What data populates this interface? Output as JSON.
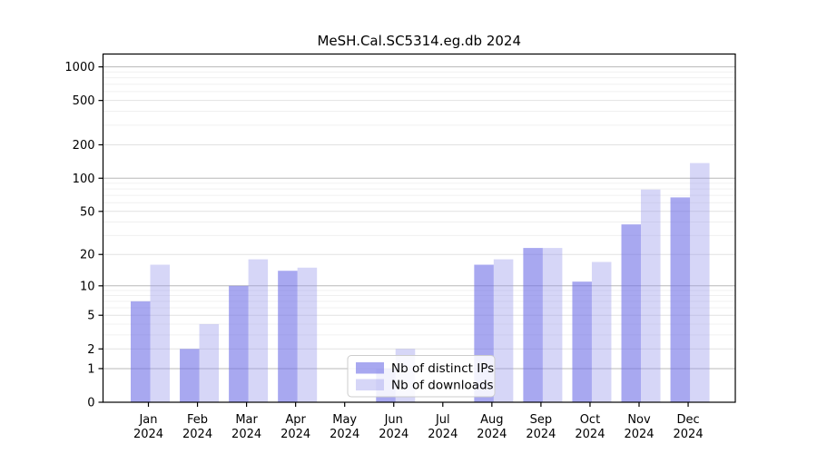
{
  "title": "MeSH.Cal.SC5314.eg.db 2024",
  "legend": {
    "items": [
      {
        "label": "Nb of distinct IPs",
        "swatch": "dark"
      },
      {
        "label": "Nb of downloads",
        "swatch": "light"
      }
    ]
  },
  "colors": {
    "bar_dark": "#6e6ee6",
    "bar_dark_opacity": 0.6,
    "bar_light": "#9898ec",
    "bar_light_opacity": 0.4,
    "grid_major": "#b8b8b8",
    "grid_mid": "#e2e2e2",
    "grid_minor": "#f0f0f0",
    "axis": "#000000",
    "legend_border": "#cccccc",
    "legend_bg": "#ffffff"
  },
  "chart_data": {
    "type": "bar",
    "title": "MeSH.Cal.SC5314.eg.db 2024",
    "categories": [
      "Jan 2024",
      "Feb 2024",
      "Mar 2024",
      "Apr 2024",
      "May 2024",
      "Jun 2024",
      "Jul 2024",
      "Aug 2024",
      "Sep 2024",
      "Oct 2024",
      "Nov 2024",
      "Dec 2024"
    ],
    "x_tick_line1": [
      "Jan",
      "Feb",
      "Mar",
      "Apr",
      "May",
      "Jun",
      "Jul",
      "Aug",
      "Sep",
      "Oct",
      "Nov",
      "Dec"
    ],
    "x_tick_line2": [
      "2024",
      "2024",
      "2024",
      "2024",
      "2024",
      "2024",
      "2024",
      "2024",
      "2024",
      "2024",
      "2024",
      "2024"
    ],
    "series": [
      {
        "name": "Nb of distinct IPs",
        "values": [
          7,
          2,
          10,
          14,
          0,
          1,
          0,
          16,
          23,
          11,
          38,
          67
        ]
      },
      {
        "name": "Nb of downloads",
        "values": [
          16,
          4,
          18,
          15,
          0,
          2,
          0,
          18,
          23,
          17,
          79,
          137
        ]
      }
    ],
    "xlabel": "",
    "ylabel": "",
    "yscale": "log10(1+y)",
    "y_tick_labels": [
      "0",
      "1",
      "2",
      "5",
      "10",
      "20",
      "50",
      "100",
      "200",
      "500",
      "1000"
    ],
    "y_tick_values": [
      0,
      1,
      2,
      5,
      10,
      20,
      50,
      100,
      200,
      500,
      1000
    ],
    "y_mid_gridlines": [
      2,
      5,
      20,
      50,
      200,
      500
    ],
    "y_minor_gridlines": [
      3,
      4,
      6,
      7,
      8,
      9,
      30,
      40,
      60,
      70,
      80,
      90,
      300,
      400,
      600,
      700,
      800,
      900
    ],
    "ylim": [
      0,
      1300
    ],
    "grid": true,
    "legend_position": "bottom-center"
  }
}
